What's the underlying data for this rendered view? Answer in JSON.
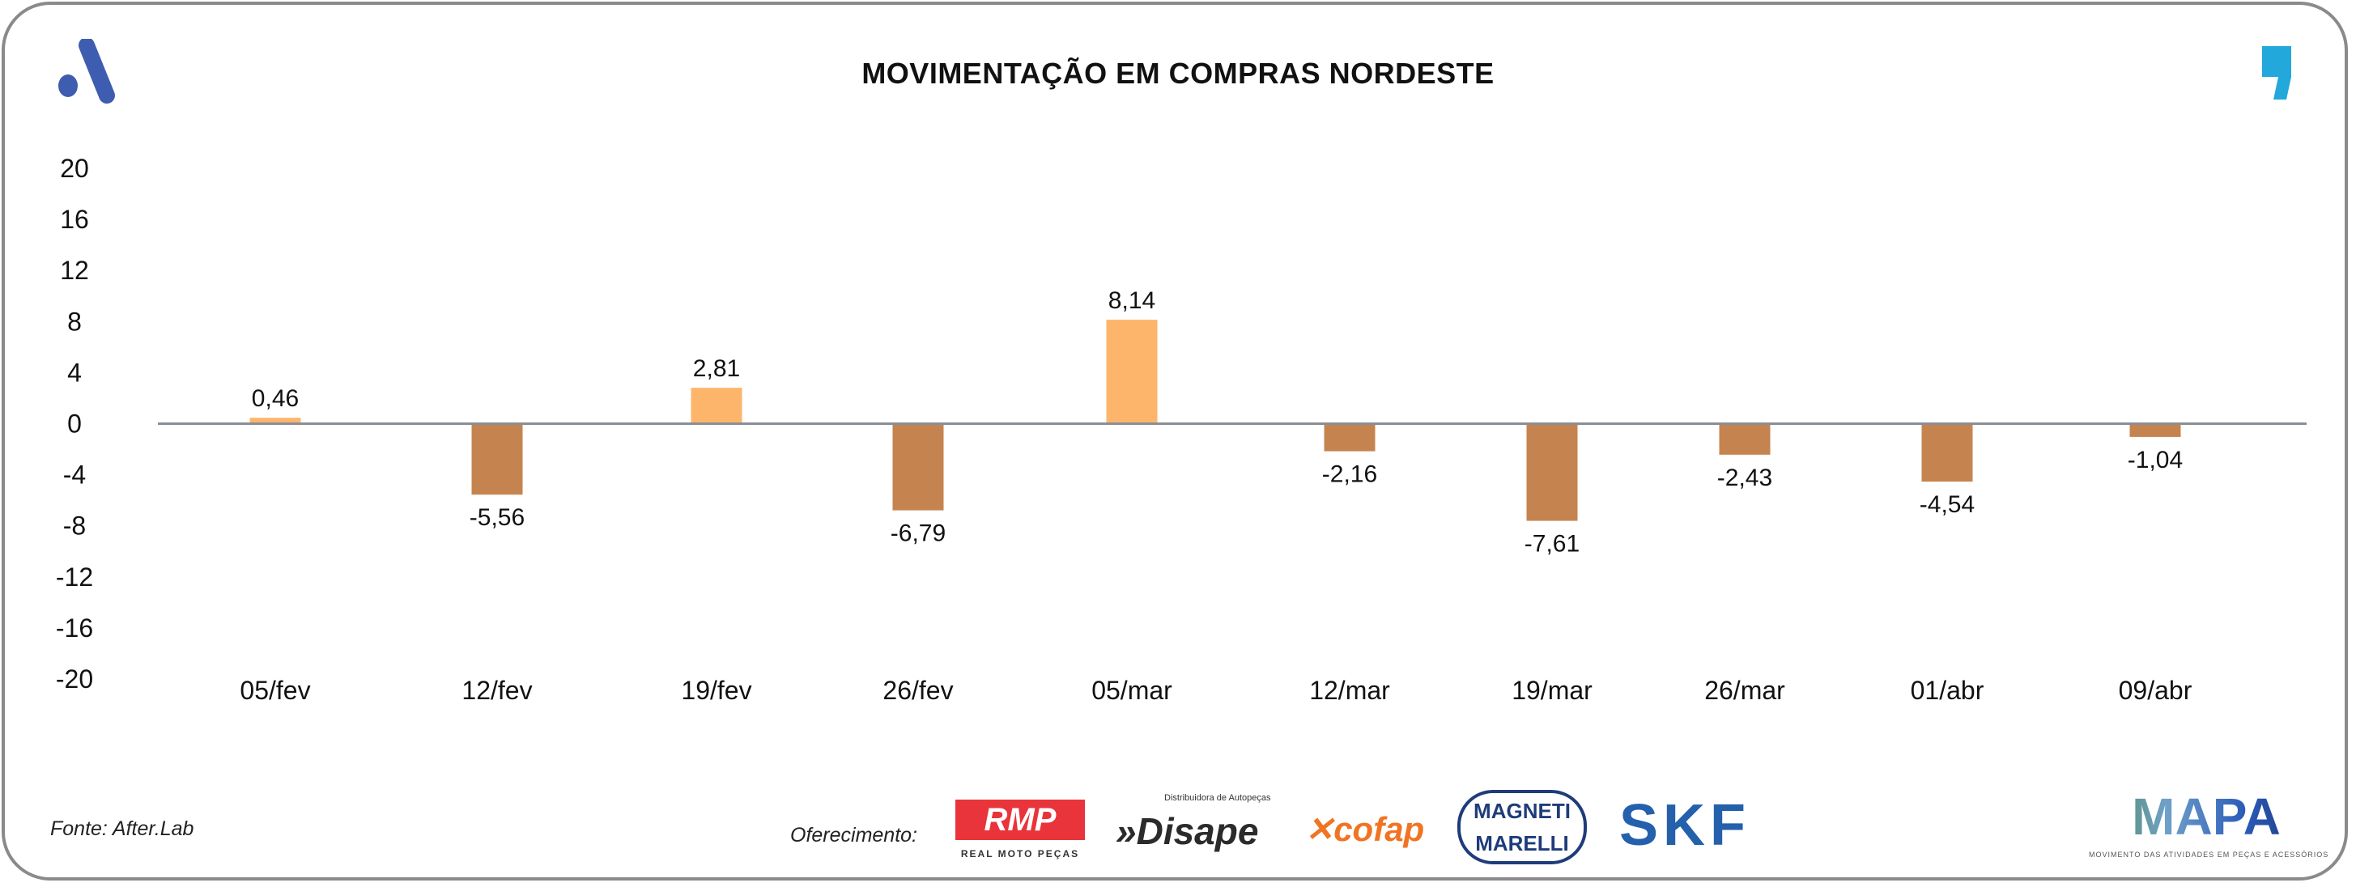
{
  "chart_data": {
    "type": "bar",
    "title": "MOVIMENTAÇÃO EM COMPRAS NORDESTE",
    "categories": [
      "05/fev",
      "12/fev",
      "19/fev",
      "26/fev",
      "05/mar",
      "12/mar",
      "19/mar",
      "26/mar",
      "01/abr",
      "09/abr"
    ],
    "values": [
      0.46,
      -5.56,
      2.81,
      -6.79,
      8.14,
      -2.16,
      -7.61,
      -2.43,
      -4.54,
      -1.04
    ],
    "value_labels": [
      "0,46",
      "-5,56",
      "2,81",
      "-6,79",
      "8,14",
      "-2,16",
      "-7,61",
      "-2,43",
      "-4,54",
      "-1,04"
    ],
    "ylim": [
      -20,
      20
    ],
    "yticks": [
      20,
      16,
      12,
      8,
      4,
      0,
      -4,
      -8,
      -12,
      -16,
      -20
    ],
    "grid": false,
    "xlabel": "",
    "ylabel": "",
    "colors": {
      "positive": "#FDB56B",
      "negative": "#C5844F",
      "zero_line": "#8A8F96"
    }
  },
  "footer": {
    "source": "Fonte: After.Lab",
    "sponsor_label": "Oferecimento:",
    "sponsors": [
      "RMP",
      "REAL MOTO PEÇAS",
      "Disape",
      "Distribuidora de Autopeças",
      "cofap",
      "MAGNETI MARELLI",
      "SKF"
    ],
    "brand": "MAPA",
    "brand_tagline": "MOVIMENTO DAS ATIVIDADES EM PEÇAS E ACESSÓRIOS"
  },
  "logos": {
    "left": "after-lab-logo",
    "right": "comma-logo"
  }
}
